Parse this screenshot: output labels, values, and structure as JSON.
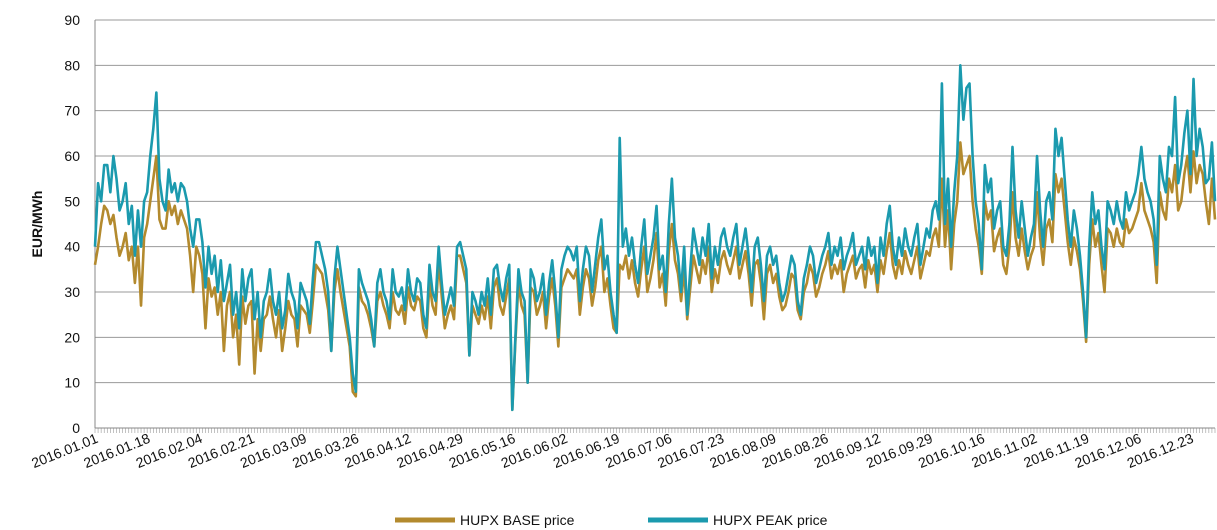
{
  "chart_data": {
    "type": "line",
    "y_label": "EUR/MWh",
    "categories": [
      "2016.01.01",
      null,
      null,
      null,
      null,
      null,
      null,
      null,
      null,
      null,
      null,
      null,
      null,
      null,
      null,
      null,
      null,
      "2016.01.18",
      null,
      null,
      null,
      null,
      null,
      null,
      null,
      null,
      null,
      null,
      null,
      null,
      null,
      null,
      null,
      null,
      "2016.02.04",
      null,
      null,
      null,
      null,
      null,
      null,
      null,
      null,
      null,
      null,
      null,
      null,
      null,
      null,
      null,
      null,
      "2016.02.21",
      null,
      null,
      null,
      null,
      null,
      null,
      null,
      null,
      null,
      null,
      null,
      null,
      null,
      null,
      null,
      null,
      "2016.03.09",
      null,
      null,
      null,
      null,
      null,
      null,
      null,
      null,
      null,
      null,
      null,
      null,
      null,
      null,
      null,
      null,
      "2016.03.26",
      null,
      null,
      null,
      null,
      null,
      null,
      null,
      null,
      null,
      null,
      null,
      null,
      null,
      null,
      null,
      null,
      "2016.04.12",
      null,
      null,
      null,
      null,
      null,
      null,
      null,
      null,
      null,
      null,
      null,
      null,
      null,
      null,
      null,
      null,
      "2016.04.29",
      null,
      null,
      null,
      null,
      null,
      null,
      null,
      null,
      null,
      null,
      null,
      null,
      null,
      null,
      null,
      null,
      "2016.05.16",
      null,
      null,
      null,
      null,
      null,
      null,
      null,
      null,
      null,
      null,
      null,
      null,
      null,
      null,
      null,
      null,
      "2016.06.02",
      null,
      null,
      null,
      null,
      null,
      null,
      null,
      null,
      null,
      null,
      null,
      null,
      null,
      null,
      null,
      null,
      "2016.06.19",
      null,
      null,
      null,
      null,
      null,
      null,
      null,
      null,
      null,
      null,
      null,
      null,
      null,
      null,
      null,
      null,
      "2016.07.06",
      null,
      null,
      null,
      null,
      null,
      null,
      null,
      null,
      null,
      null,
      null,
      null,
      null,
      null,
      null,
      null,
      "2016.07.23",
      null,
      null,
      null,
      null,
      null,
      null,
      null,
      null,
      null,
      null,
      null,
      null,
      null,
      null,
      null,
      null,
      "2016.08.09",
      null,
      null,
      null,
      null,
      null,
      null,
      null,
      null,
      null,
      null,
      null,
      null,
      null,
      null,
      null,
      null,
      "2016.08.26",
      null,
      null,
      null,
      null,
      null,
      null,
      null,
      null,
      null,
      null,
      null,
      null,
      null,
      null,
      null,
      null,
      "2016.09.12",
      null,
      null,
      null,
      null,
      null,
      null,
      null,
      null,
      null,
      null,
      null,
      null,
      null,
      null,
      null,
      null,
      "2016.09.29",
      null,
      null,
      null,
      null,
      null,
      null,
      null,
      null,
      null,
      null,
      null,
      null,
      null,
      null,
      null,
      null,
      "2016.10.16",
      null,
      null,
      null,
      null,
      null,
      null,
      null,
      null,
      null,
      null,
      null,
      null,
      null,
      null,
      null,
      null,
      "2016.11.02",
      null,
      null,
      null,
      null,
      null,
      null,
      null,
      null,
      null,
      null,
      null,
      null,
      null,
      null,
      null,
      null,
      "2016.11.19",
      null,
      null,
      null,
      null,
      null,
      null,
      null,
      null,
      null,
      null,
      null,
      null,
      null,
      null,
      null,
      null,
      "2016.12.06",
      null,
      null,
      null,
      null,
      null,
      null,
      null,
      null,
      null,
      null,
      null,
      null,
      null,
      null,
      null,
      null,
      "2016.12.23",
      null,
      null,
      null,
      null,
      null,
      null,
      null,
      null
    ],
    "series": [
      {
        "name": "HUPX BASE price",
        "color": "#b38a2e",
        "values": [
          36,
          40,
          45,
          49,
          48,
          45,
          47,
          42,
          38,
          40,
          43,
          37,
          40,
          32,
          40,
          27,
          42,
          45,
          50,
          55,
          60,
          46,
          44,
          44,
          50,
          47,
          49,
          45,
          48,
          46,
          44,
          38,
          30,
          40,
          38,
          34,
          22,
          33,
          29,
          31,
          25,
          30,
          17,
          27,
          30,
          20,
          25,
          14,
          29,
          23,
          27,
          28,
          12,
          24,
          17,
          24,
          25,
          29,
          24,
          20,
          26,
          17,
          22,
          28,
          25,
          24,
          18,
          27,
          26,
          25,
          21,
          28,
          36,
          35,
          34,
          30,
          26,
          17,
          30,
          35,
          30,
          26,
          22,
          18,
          8,
          7,
          31,
          28,
          27,
          25,
          22,
          18,
          28,
          30,
          27,
          25,
          22,
          30,
          26,
          25,
          27,
          23,
          31,
          27,
          26,
          29,
          28,
          22,
          20,
          32,
          27,
          25,
          37,
          29,
          22,
          25,
          27,
          24,
          38,
          38,
          35,
          32,
          16,
          27,
          25,
          23,
          27,
          24,
          29,
          22,
          31,
          33,
          27,
          25,
          29,
          33,
          4,
          19,
          32,
          27,
          25,
          10,
          31,
          30,
          25,
          27,
          30,
          22,
          29,
          33,
          27,
          18,
          31,
          33,
          35,
          34,
          33,
          35,
          25,
          31,
          35,
          33,
          27,
          31,
          37,
          40,
          30,
          33,
          27,
          22,
          21,
          36,
          35,
          38,
          33,
          37,
          32,
          29,
          35,
          40,
          30,
          33,
          37,
          43,
          31,
          34,
          27,
          39,
          45,
          37,
          34,
          28,
          35,
          24,
          31,
          38,
          35,
          32,
          37,
          34,
          40,
          30,
          35,
          32,
          37,
          39,
          36,
          34,
          37,
          40,
          33,
          36,
          39,
          34,
          27,
          36,
          37,
          32,
          24,
          34,
          36,
          32,
          34,
          29,
          26,
          27,
          30,
          34,
          33,
          26,
          24,
          30,
          32,
          36,
          34,
          29,
          31,
          34,
          36,
          39,
          33,
          36,
          34,
          37,
          30,
          34,
          36,
          38,
          33,
          35,
          36,
          31,
          37,
          34,
          36,
          30,
          37,
          34,
          39,
          43,
          36,
          33,
          37,
          34,
          39,
          36,
          34,
          37,
          40,
          33,
          36,
          39,
          38,
          42,
          44,
          40,
          55,
          40,
          48,
          35,
          45,
          50,
          63,
          56,
          58,
          60,
          50,
          44,
          40,
          34,
          50,
          46,
          48,
          39,
          42,
          44,
          36,
          34,
          40,
          52,
          42,
          38,
          44,
          39,
          35,
          38,
          40,
          52,
          42,
          36,
          44,
          46,
          41,
          56,
          52,
          55,
          48,
          41,
          36,
          42,
          39,
          35,
          28,
          19,
          36,
          46,
          40,
          43,
          36,
          30,
          44,
          43,
          40,
          44,
          41,
          40,
          46,
          43,
          44,
          46,
          48,
          54,
          48,
          46,
          44,
          41,
          32,
          52,
          48,
          46,
          55,
          52,
          58,
          48,
          50,
          56,
          60,
          52,
          61,
          54,
          58,
          56,
          50,
          45,
          55,
          46
        ]
      },
      {
        "name": "HUPX PEAK price",
        "color": "#1b9aae",
        "values": [
          40,
          54,
          50,
          58,
          58,
          52,
          60,
          55,
          48,
          50,
          54,
          45,
          49,
          38,
          48,
          40,
          50,
          52,
          60,
          66,
          74,
          55,
          50,
          48,
          57,
          52,
          54,
          50,
          54,
          53,
          50,
          44,
          40,
          46,
          46,
          41,
          31,
          40,
          34,
          38,
          30,
          37,
          28,
          32,
          36,
          25,
          30,
          22,
          35,
          28,
          33,
          35,
          24,
          30,
          20,
          28,
          30,
          35,
          28,
          25,
          30,
          22,
          26,
          34,
          30,
          28,
          22,
          32,
          30,
          28,
          23,
          33,
          41,
          41,
          38,
          35,
          30,
          17,
          33,
          40,
          35,
          30,
          25,
          20,
          12,
          8,
          35,
          32,
          30,
          28,
          24,
          18,
          32,
          35,
          30,
          28,
          24,
          35,
          30,
          29,
          31,
          26,
          35,
          30,
          28,
          33,
          32,
          25,
          22,
          36,
          30,
          28,
          40,
          32,
          25,
          28,
          31,
          27,
          40,
          41,
          38,
          35,
          16,
          30,
          28,
          25,
          30,
          27,
          33,
          25,
          35,
          36,
          31,
          28,
          33,
          36,
          4,
          20,
          35,
          30,
          28,
          10,
          35,
          33,
          28,
          30,
          34,
          25,
          32,
          37,
          30,
          20,
          35,
          38,
          40,
          39,
          37,
          40,
          28,
          35,
          40,
          38,
          30,
          36,
          42,
          46,
          35,
          38,
          30,
          25,
          21,
          64,
          40,
          44,
          38,
          42,
          36,
          32,
          40,
          46,
          34,
          38,
          42,
          49,
          35,
          38,
          30,
          45,
          55,
          42,
          38,
          30,
          40,
          25,
          35,
          44,
          40,
          36,
          42,
          38,
          45,
          33,
          40,
          36,
          42,
          44,
          40,
          38,
          42,
          45,
          36,
          40,
          44,
          38,
          30,
          40,
          42,
          36,
          28,
          38,
          40,
          36,
          38,
          32,
          28,
          30,
          34,
          38,
          36,
          28,
          25,
          33,
          36,
          40,
          38,
          32,
          35,
          38,
          40,
          43,
          36,
          40,
          38,
          42,
          35,
          38,
          40,
          43,
          36,
          38,
          40,
          35,
          42,
          38,
          40,
          32,
          42,
          38,
          45,
          49,
          40,
          36,
          42,
          38,
          44,
          40,
          38,
          42,
          45,
          36,
          40,
          44,
          42,
          48,
          50,
          46,
          76,
          45,
          55,
          40,
          52,
          60,
          80,
          68,
          75,
          76,
          60,
          50,
          45,
          35,
          58,
          52,
          55,
          44,
          48,
          50,
          40,
          38,
          45,
          62,
          48,
          42,
          50,
          44,
          38,
          42,
          45,
          60,
          48,
          40,
          50,
          52,
          46,
          66,
          60,
          64,
          55,
          46,
          40,
          48,
          44,
          38,
          30,
          20,
          40,
          52,
          45,
          48,
          40,
          35,
          50,
          48,
          45,
          50,
          46,
          44,
          52,
          48,
          50,
          52,
          56,
          62,
          55,
          52,
          50,
          46,
          36,
          60,
          55,
          52,
          62,
          60,
          73,
          54,
          58,
          65,
          70,
          56,
          77,
          60,
          66,
          62,
          54,
          55,
          63,
          50
        ]
      }
    ],
    "ylim": [
      0,
      90
    ],
    "yticks": [
      0,
      10,
      20,
      30,
      40,
      50,
      60,
      70,
      80,
      90
    ],
    "grid": true,
    "legend": "bottom"
  }
}
